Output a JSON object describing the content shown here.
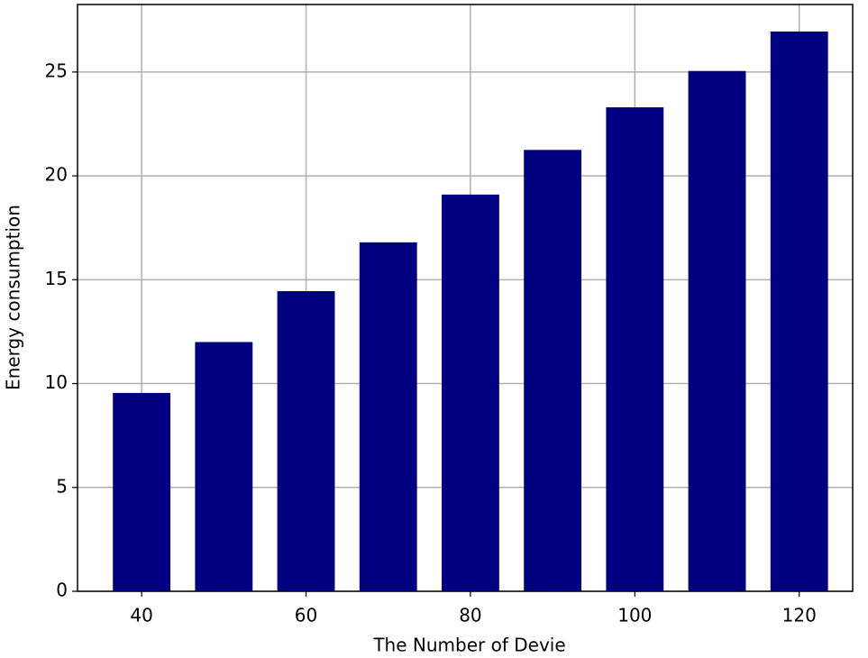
{
  "chart_data": {
    "type": "bar",
    "x": [
      40,
      50,
      60,
      70,
      80,
      90,
      100,
      110,
      120
    ],
    "values": [
      9.55,
      12.0,
      14.45,
      16.8,
      19.1,
      21.25,
      23.3,
      25.05,
      26.95
    ],
    "color": "#000080",
    "xlabel": "The Number of Devie",
    "ylabel": "Energy consumption",
    "xlim": [
      32.2,
      126.5
    ],
    "xticks": [
      40,
      60,
      80,
      100,
      120
    ],
    "ylim": [
      0,
      28.25
    ],
    "yticks": [
      0,
      5,
      10,
      15,
      20,
      25
    ],
    "grid": true
  }
}
